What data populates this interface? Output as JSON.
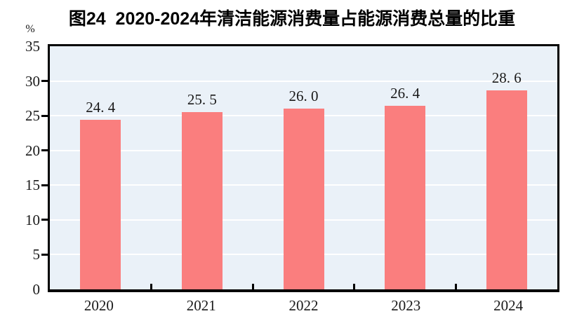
{
  "figure": {
    "title": "图24  2020-2024年清洁能源消费量占能源消费总量的比重",
    "unit_label": "%"
  },
  "chart_data": {
    "type": "bar",
    "title": "图24  2020-2024年清洁能源消费量占能源消费总量的比重",
    "categories": [
      "2020",
      "2021",
      "2022",
      "2023",
      "2024"
    ],
    "values": [
      24.4,
      25.5,
      26.0,
      26.4,
      28.6
    ],
    "value_labels": [
      "24. 4",
      "25. 5",
      "26. 0",
      "26. 4",
      "28. 6"
    ],
    "xlabel": "",
    "ylabel": "%",
    "ylim": [
      0,
      35
    ],
    "yticks": [
      0,
      5,
      10,
      15,
      20,
      25,
      30,
      35
    ],
    "grid": true,
    "legend_position": "none",
    "colors": {
      "bar": "#fa7e7e",
      "plot_background": "#eaf1f8",
      "gridline": "#ffffff",
      "axis": "#000000",
      "text": "#1a1a1a"
    }
  }
}
